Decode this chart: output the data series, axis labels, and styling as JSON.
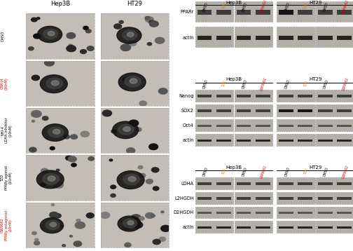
{
  "left_col_labels": [
    "Hep3B",
    "HT29"
  ],
  "left_row_labels": [
    "DMSO",
    "GSK-J4\n(10nM)",
    "NHI-4\nLDHA inhibitor\n(10nM)",
    "TZD\nPPARy agonist\n(10nM)",
    "GW9662\nPPARy antagonist\n(10nM)"
  ],
  "left_row_label_colors": [
    "black",
    "#cc0000",
    "black",
    "black",
    "#cc0000"
  ],
  "right_panel1_title_l": "Hep3B",
  "right_panel1_title_r": "HT29",
  "right_panel1_labels": [
    "PPARr",
    "actin"
  ],
  "right_panel2_title_l": "Hep3B",
  "right_panel2_title_r": "HT29",
  "right_panel2_labels": [
    "Nanog",
    "SOX2",
    "Oct4",
    "actin"
  ],
  "right_panel3_title_l": "Hep3B",
  "right_panel3_title_r": "HT29",
  "right_panel3_labels": [
    "LDHA",
    "L2HGDH",
    "D2HGDH",
    "actin"
  ],
  "col_label_groups": [
    [
      [
        "DMSO",
        "black"
      ],
      [
        "TZD",
        "#d4820a"
      ]
    ],
    [
      [
        "DMSO",
        "black"
      ],
      [
        "GW9662",
        "#cc0000"
      ]
    ],
    [
      [
        "DMSO",
        "black"
      ],
      [
        "TZD",
        "#d4820a"
      ]
    ],
    [
      [
        "DMSO",
        "black"
      ],
      [
        "GW9662",
        "#cc0000"
      ]
    ]
  ],
  "wb_bg": "#b0aca6",
  "wb_border": "#999999"
}
